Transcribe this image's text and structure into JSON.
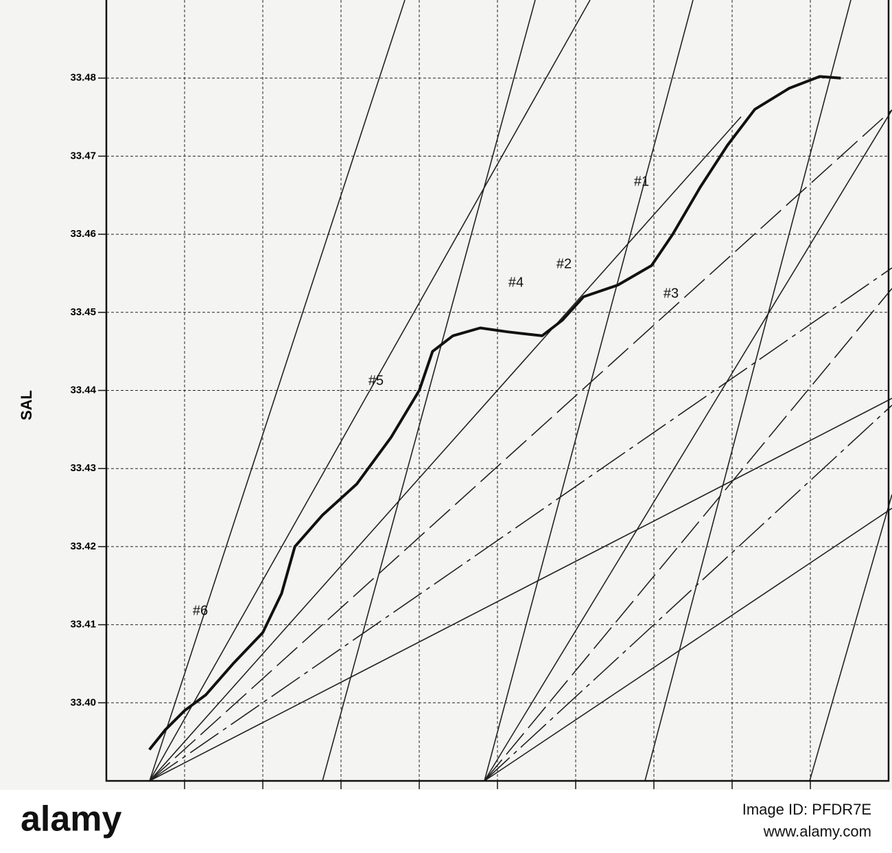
{
  "chart_data": {
    "type": "line",
    "y_label": "SAL",
    "x": [
      0.55,
      0.75,
      1.0,
      1.27,
      1.62,
      2.0,
      2.24,
      2.41,
      2.76,
      3.2,
      3.64,
      4.0,
      4.17,
      4.43,
      4.78,
      5.13,
      5.57,
      5.83,
      6.1,
      6.54,
      6.97,
      7.24,
      7.59,
      7.94,
      8.29,
      8.73,
      9.12,
      9.39
    ],
    "values": [
      33.394,
      33.3965,
      33.399,
      33.401,
      33.405,
      33.409,
      33.414,
      33.42,
      33.424,
      33.428,
      33.434,
      33.44,
      33.445,
      33.447,
      33.448,
      33.4475,
      33.447,
      33.449,
      33.452,
      33.4535,
      33.456,
      33.46,
      33.466,
      33.4714,
      33.476,
      33.4787,
      33.4802,
      33.48
    ],
    "color": "#111111",
    "xlim": [
      0,
      10
    ],
    "xticks": [
      1,
      2,
      3,
      4,
      5,
      6,
      7,
      8,
      9
    ],
    "ylim": [
      33.39,
      33.49
    ],
    "yticks": [
      {
        "value": 33.4,
        "label": "33.40"
      },
      33.41,
      33.42,
      33.43,
      33.44,
      33.45,
      33.46,
      33.47,
      33.48
    ],
    "grid": true,
    "annotations": [
      "#1",
      "#2",
      "#3",
      "#4",
      "#5",
      "#6"
    ]
  },
  "watermark": {
    "logo": "alamy",
    "image_id": "Image ID: PFDR7E",
    "url": "www.alamy.com"
  }
}
